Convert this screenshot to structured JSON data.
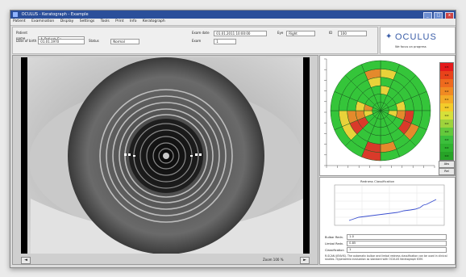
{
  "window": {
    "title": "OCULUS - Keratograph - Example",
    "controls": [
      "_",
      "□",
      "x"
    ]
  },
  "menu": [
    "Patient",
    "Examination",
    "Display",
    "Settings",
    "Tools",
    "Print",
    "Info",
    "Keratograph"
  ],
  "patient": {
    "last_name_label": "Patient name",
    "last_name": "A_Patient_Ex",
    "first_name_label": "Date of birth",
    "first_name": "01.01.1970",
    "eye_label": "Eye",
    "eye": "Right",
    "id_label": "Patient ID",
    "id": "12345",
    "date_label": "Exam date",
    "date": "01.01.2011 10:00:00",
    "status_label": "Status",
    "status": "Normal",
    "exam_label": "Exam",
    "exam": "1",
    "extra_label": "ID",
    "extra": "100"
  },
  "logo": {
    "name": "OCULUS",
    "tagline": "We focus on progress"
  },
  "image_footer": {
    "prev": "◄",
    "next": "►",
    "zoom": "Zoom 100 %"
  },
  "map": {
    "colors": {
      "green": "#35c53a",
      "yellow": "#e8d23a",
      "orange": "#e48a2c",
      "red": "#d93a2a",
      "grid": "#1b5e20"
    },
    "scale_values": [
      "0.5",
      "0.4",
      "0.3",
      "0.2",
      "0.1",
      "0.0",
      "0.0",
      "0.0",
      "0.0",
      "0.0",
      "0.0",
      "0.0"
    ],
    "scale_colors": [
      "#e41a1c",
      "#e8431a",
      "#ee6a1e",
      "#f08a22",
      "#f3ab26",
      "#f3cb2a",
      "#d6e03a",
      "#9ed33c",
      "#63c93c",
      "#3cbf3c",
      "#2fb32f",
      "#27a327"
    ],
    "buttons": [
      "Abs",
      "Rel"
    ]
  },
  "history": {
    "title": "Redness Classification",
    "row1_label": "Bulbar Redn.",
    "row1": "1.0",
    "row2_label": "Limbal Redn.",
    "row2": "0.85",
    "row3_label": "Classification",
    "row3": "1",
    "note": "R-SCAN (JENVIS). The automatic bulbar and limbal redness classification can be used in clinical studies. Hyperaemia evaluation as standard with OCULUS Keratograph K5M."
  }
}
